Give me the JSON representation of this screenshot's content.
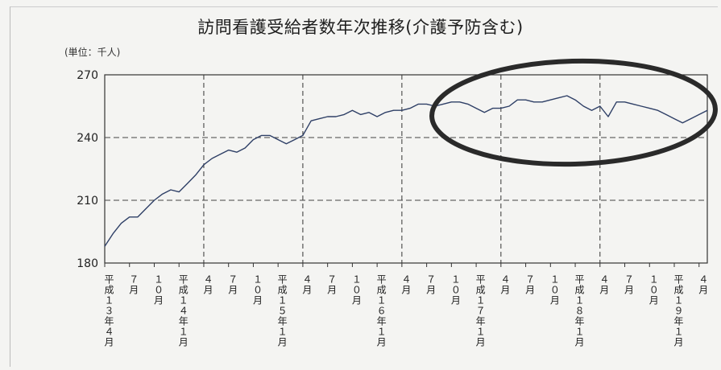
{
  "chart_data": {
    "type": "line",
    "title": "訪問看護受給者数年次推移(介護予防含む)",
    "unit_label": "(単位：千人)",
    "ylim": [
      180,
      270
    ],
    "yticks": [
      "180",
      "210",
      "240",
      "270"
    ],
    "grid": true,
    "x_tick_labels": [
      "平成１３年４月",
      "７月",
      "１０月",
      "平成１４年１月",
      "４月",
      "７月",
      "１０月",
      "平成１５年１月",
      "４月",
      "７月",
      "１０月",
      "平成１６年１月",
      "４月",
      "７月",
      "１０月",
      "平成１７年１月",
      "４月",
      "７月",
      "１０月",
      "平成１８年１月",
      "４月",
      "７月",
      "１０月",
      "平成１９年１月",
      "４月"
    ],
    "x": [
      "2001-04",
      "2001-05",
      "2001-06",
      "2001-07",
      "2001-08",
      "2001-09",
      "2001-10",
      "2001-11",
      "2001-12",
      "2002-01",
      "2002-02",
      "2002-03",
      "2002-04",
      "2002-05",
      "2002-06",
      "2002-07",
      "2002-08",
      "2002-09",
      "2002-10",
      "2002-11",
      "2002-12",
      "2003-01",
      "2003-02",
      "2003-03",
      "2003-04",
      "2003-05",
      "2003-06",
      "2003-07",
      "2003-08",
      "2003-09",
      "2003-10",
      "2003-11",
      "2003-12",
      "2004-01",
      "2004-02",
      "2004-03",
      "2004-04",
      "2004-05",
      "2004-06",
      "2004-07",
      "2004-08",
      "2004-09",
      "2004-10",
      "2004-11",
      "2004-12",
      "2005-01",
      "2005-02",
      "2005-03",
      "2005-04",
      "2005-05",
      "2005-06",
      "2005-07",
      "2005-08",
      "2005-09",
      "2005-10",
      "2005-11",
      "2005-12",
      "2006-01",
      "2006-02",
      "2006-03",
      "2006-04",
      "2006-05",
      "2006-06",
      "2006-07",
      "2006-08",
      "2006-09",
      "2006-10",
      "2006-11",
      "2006-12",
      "2007-01",
      "2007-02",
      "2007-03",
      "2007-04",
      "2007-05"
    ],
    "values": [
      188,
      194,
      199,
      202,
      202,
      206,
      210,
      213,
      215,
      214,
      218,
      222,
      227,
      230,
      232,
      234,
      233,
      235,
      239,
      241,
      241,
      239,
      237,
      239,
      241,
      248,
      249,
      250,
      250,
      251,
      253,
      251,
      252,
      250,
      252,
      253,
      253,
      254,
      256,
      256,
      255,
      256,
      257,
      257,
      256,
      254,
      252,
      254,
      254,
      255,
      258,
      258,
      257,
      257,
      258,
      259,
      260,
      258,
      255,
      253,
      255,
      250,
      257,
      257,
      256,
      255,
      254,
      253,
      251,
      249,
      247,
      249,
      251,
      253
    ]
  }
}
